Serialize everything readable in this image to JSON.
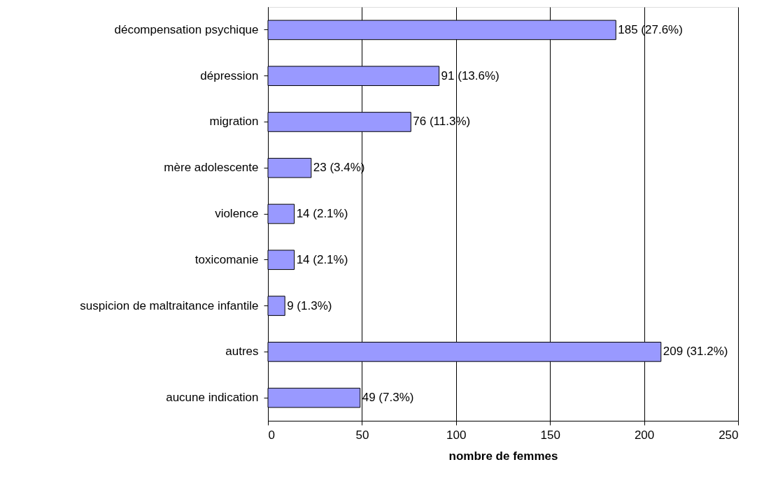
{
  "chart_data": {
    "type": "bar",
    "orientation": "horizontal",
    "xlabel": "nombre de femmes",
    "categories": [
      "décompensation psychique",
      "dépression",
      "migration",
      "mère adolescente",
      "violence",
      "toxicomanie",
      "suspicion de maltraitance infantile",
      "autres",
      "aucune indication"
    ],
    "values": [
      185,
      91,
      76,
      23,
      14,
      14,
      9,
      209,
      49
    ],
    "value_labels": [
      "185 (27.6%)",
      "91 (13.6%)",
      "76 (11.3%)",
      "23 (3.4%)",
      "14 (2.1%)",
      "14 (2.1%)",
      "9 (1.3%)",
      "209 (31.2%)",
      "49 (7.3%)"
    ],
    "color": "#9999ff",
    "xlim": [
      0,
      250
    ],
    "xticks": [
      0,
      50,
      100,
      150,
      200,
      250
    ],
    "grid": "x"
  }
}
